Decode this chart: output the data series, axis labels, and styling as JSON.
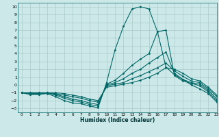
{
  "bg_color": "#cce8e8",
  "grid_color": "#aacccc",
  "line_color": "#006666",
  "xlabel": "Humidex (Indice chaleur)",
  "xlim": [
    -0.5,
    23
  ],
  "ylim": [
    -3.5,
    10.5
  ],
  "xticks": [
    0,
    1,
    2,
    3,
    4,
    5,
    6,
    7,
    8,
    9,
    10,
    11,
    12,
    13,
    14,
    15,
    16,
    17,
    18,
    19,
    20,
    21,
    22,
    23
  ],
  "yticks": [
    -3,
    -2,
    -1,
    0,
    1,
    2,
    3,
    4,
    5,
    6,
    7,
    8,
    9,
    10
  ],
  "series": [
    {
      "x": [
        0,
        1,
        2,
        3,
        4,
        5,
        6,
        7,
        8,
        9,
        10,
        11,
        12,
        13,
        14,
        15,
        16,
        17,
        18,
        19,
        20,
        21,
        22,
        23
      ],
      "y": [
        -1.0,
        -1.2,
        -1.2,
        -1.1,
        -1.5,
        -2.0,
        -2.3,
        -2.4,
        -2.7,
        -2.9,
        0.3,
        4.5,
        7.5,
        9.7,
        10.0,
        9.7,
        6.8,
        2.3,
        1.3,
        0.7,
        0.0,
        -0.5,
        -1.1,
        -2.2
      ]
    },
    {
      "x": [
        0,
        1,
        2,
        3,
        4,
        5,
        6,
        7,
        8,
        9,
        10,
        11,
        12,
        13,
        14,
        15,
        16,
        17,
        18,
        19,
        20,
        21,
        22,
        23
      ],
      "y": [
        -1.0,
        -1.2,
        -1.2,
        -1.0,
        -1.3,
        -1.7,
        -2.0,
        -2.2,
        -2.5,
        -2.7,
        0.1,
        0.6,
        1.5,
        2.5,
        3.3,
        4.0,
        6.8,
        7.0,
        1.2,
        0.5,
        0.2,
        -0.1,
        -0.9,
        -2.0
      ]
    },
    {
      "x": [
        0,
        1,
        2,
        3,
        4,
        5,
        6,
        7,
        8,
        9,
        10,
        11,
        12,
        13,
        14,
        15,
        16,
        17,
        18,
        19,
        20,
        21,
        22,
        23
      ],
      "y": [
        -1.0,
        -1.1,
        -1.1,
        -1.0,
        -1.2,
        -1.5,
        -1.8,
        -2.0,
        -2.3,
        -2.5,
        0.0,
        0.3,
        0.8,
        1.5,
        2.0,
        2.8,
        3.5,
        4.2,
        1.5,
        0.7,
        0.3,
        0.1,
        -0.7,
        -1.8
      ]
    },
    {
      "x": [
        0,
        1,
        2,
        3,
        4,
        5,
        6,
        7,
        8,
        9,
        10,
        11,
        12,
        13,
        14,
        15,
        16,
        17,
        18,
        19,
        20,
        21,
        22,
        23
      ],
      "y": [
        -1.0,
        -1.0,
        -1.0,
        -1.0,
        -1.1,
        -1.3,
        -1.5,
        -1.7,
        -2.0,
        -2.2,
        -0.1,
        0.1,
        0.3,
        0.8,
        1.2,
        1.7,
        2.2,
        2.8,
        1.8,
        1.1,
        0.5,
        0.3,
        -0.5,
        -1.5
      ]
    },
    {
      "x": [
        0,
        1,
        2,
        3,
        4,
        5,
        6,
        7,
        8,
        9,
        10,
        11,
        12,
        13,
        14,
        15,
        16,
        17,
        18,
        19,
        20,
        21,
        22,
        23
      ],
      "y": [
        -1.0,
        -1.0,
        -1.0,
        -1.0,
        -1.0,
        -1.1,
        -1.3,
        -1.5,
        -1.8,
        -2.0,
        -0.3,
        -0.1,
        0.1,
        0.3,
        0.6,
        1.0,
        1.5,
        2.2,
        2.0,
        1.5,
        0.8,
        0.5,
        -0.3,
        -1.3
      ]
    }
  ]
}
